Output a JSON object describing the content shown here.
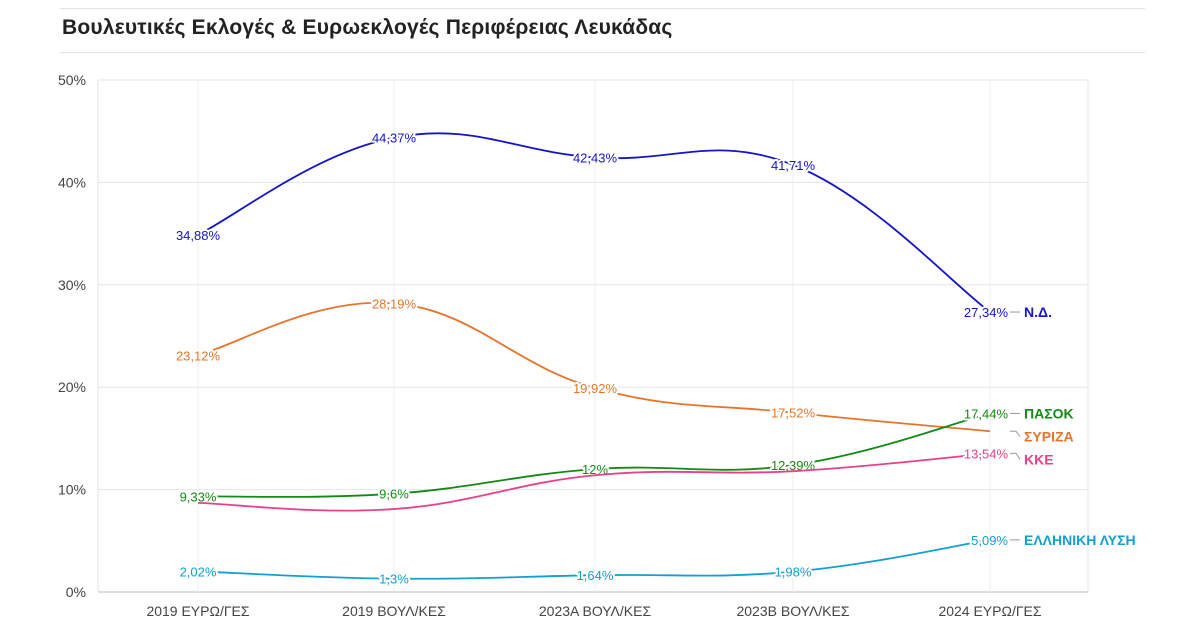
{
  "title": "Βουλευτικές Εκλογές & Ευρωεκλογές Περιφέρειας Λευκάδας",
  "chart_data": {
    "type": "line",
    "title": "Βουλευτικές Εκλογές & Ευρωεκλογές Περιφέρειας Λευκάδας",
    "categories": [
      "2019 ΕΥΡΩ/ΓΕΣ",
      "2019 ΒΟΥΛ/ΚΕΣ",
      "2023Α ΒΟΥΛ/ΚΕΣ",
      "2023Β ΒΟΥΛ/ΚΕΣ",
      "2024 ΕΥΡΩ/ΓΕΣ"
    ],
    "ylim": [
      0,
      50
    ],
    "yticks": [
      "0%",
      "10%",
      "20%",
      "30%",
      "40%",
      "50%"
    ],
    "grid": true,
    "series": [
      {
        "name": "Ν.Δ.",
        "color": "#1414c8",
        "values": [
          34.88,
          44.37,
          42.43,
          41.71,
          27.34
        ],
        "labels": [
          "34,88%",
          "44,37%",
          "42,43%",
          "41,71%",
          "27,34%"
        ],
        "show": [
          true,
          true,
          true,
          true,
          true
        ]
      },
      {
        "name": "ΣΥΡΙΖΑ",
        "color": "#e8742c",
        "values": [
          23.12,
          28.19,
          19.92,
          17.52,
          15.7
        ],
        "labels": [
          "23,12%",
          "28,19%",
          "19,92%",
          "17,52%",
          ""
        ],
        "show": [
          true,
          true,
          true,
          true,
          false
        ]
      },
      {
        "name": "ΠΑΣΟΚ",
        "color": "#138a13",
        "values": [
          9.33,
          9.6,
          12,
          12.39,
          17.44
        ],
        "labels": [
          "9,33%",
          "9,6%",
          "12%",
          "12,39%",
          "17,44%"
        ],
        "show": [
          true,
          true,
          true,
          true,
          true
        ]
      },
      {
        "name": "ΚΚΕ",
        "color": "#e8418a",
        "values": [
          8.7,
          8.1,
          11.4,
          11.8,
          13.54
        ],
        "labels": [
          "",
          "",
          "",
          "",
          "13,54%"
        ],
        "show": [
          false,
          false,
          false,
          false,
          true
        ]
      },
      {
        "name": "ΕΛΛΗΝΙΚΗ ΛΥΣΗ",
        "color": "#13a0d0",
        "values": [
          2.02,
          1.3,
          1.64,
          1.98,
          5.09
        ],
        "labels": [
          "2,02%",
          "1,3%",
          "1,64%",
          "1,98%",
          "5,09%"
        ],
        "show": [
          true,
          true,
          true,
          true,
          true
        ]
      }
    ]
  }
}
